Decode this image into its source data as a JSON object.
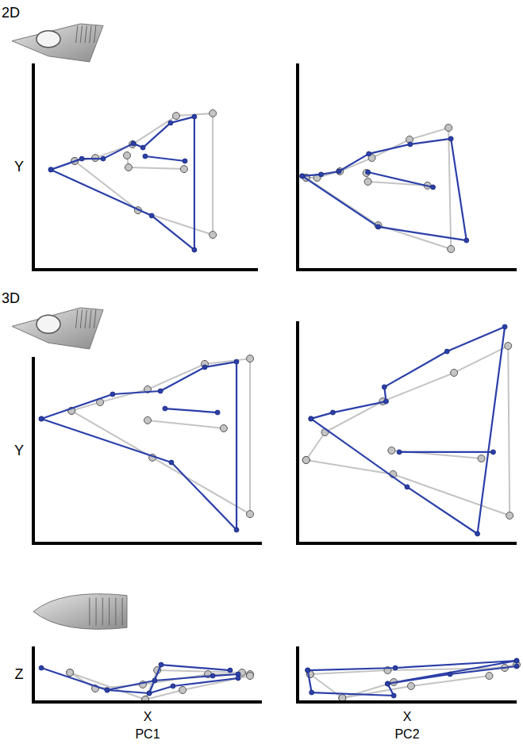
{
  "chart_data": [
    {
      "type": "line",
      "title": "2D",
      "y_label": "Y",
      "xlim": [
        0,
        100
      ],
      "ylim": [
        0,
        100
      ],
      "tick_labels": false,
      "series": [
        {
          "color": "#c4c4c4",
          "marker": "circle",
          "x": [
            18.4,
            27.6,
            44.2,
            63.6,
            79.9,
            79.9,
            46.6,
            18.4,
            null,
            41.7,
            42.4,
            67.1
          ],
          "values": [
            52.7,
            54.2,
            60.8,
            74.6,
            75.8,
            16.9,
            28.8,
            52.7,
            null,
            55.4,
            49.6,
            48.8
          ]
        },
        {
          "color": "#2b3fa8",
          "marker": "dot",
          "x": [
            7.8,
            21.6,
            31.1,
            44.5,
            48.8,
            61.1,
            71.7,
            71.7,
            52.7,
            7.8,
            null,
            49.8,
            67.5
          ],
          "values": [
            48.5,
            53.8,
            53.8,
            61.2,
            59.2,
            71.2,
            74.2,
            9.6,
            26.2,
            48.5,
            null,
            55,
            52.7
          ]
        }
      ]
    },
    {
      "type": "line",
      "xlim": [
        0,
        100
      ],
      "ylim": [
        0,
        100
      ],
      "tick_labels": false,
      "series": [
        {
          "color": "#c4c4c4",
          "marker": "circle",
          "x": [
            3.9,
            8.9,
            19.3,
            33.9,
            51.1,
            68.9,
            70,
            36.8,
            3.9,
            null,
            31.4,
            32.1,
            59.3
          ],
          "values": [
            44.6,
            44.6,
            47.7,
            54.2,
            63.1,
            68.8,
            10,
            21.5,
            44.6,
            null,
            46.9,
            42.7,
            40.8
          ]
        },
        {
          "color": "#2b3fa8",
          "marker": "dot",
          "x": [
            2.1,
            10.7,
            18.9,
            32.5,
            51.4,
            70,
            77.1,
            36.8,
            2.1,
            null,
            32.1,
            61.8
          ],
          "values": [
            45.4,
            46.2,
            47.7,
            56.2,
            60.8,
            63.5,
            14.2,
            20.8,
            45.4,
            null,
            47.3,
            40
          ]
        }
      ]
    },
    {
      "type": "line",
      "title": "3D",
      "y_label": "Y",
      "xlim": [
        0,
        100
      ],
      "ylim": [
        0,
        100
      ],
      "tick_labels": false,
      "series": [
        {
          "color": "#c4c4c4",
          "marker": "circle",
          "x": [
            16.7,
            29.2,
            50,
            75,
            94.8,
            94.8,
            52.1,
            16.7,
            null,
            50,
            83.3
          ],
          "values": [
            71.1,
            75.7,
            82.6,
            96.2,
            99.1,
            15.7,
            46,
            71.1,
            null,
            66,
            61.7
          ]
        },
        {
          "color": "#2b3fa8",
          "marker": "dot",
          "x": [
            3.5,
            34.7,
            55.6,
            75,
            88.9,
            88.9,
            60.4,
            3.5,
            null,
            57.6,
            80.6
          ],
          "values": [
            66.8,
            80,
            81.7,
            94.5,
            97.4,
            7.2,
            43.4,
            66.8,
            null,
            72.3,
            70.2
          ]
        }
      ]
    },
    {
      "type": "line",
      "xlim": [
        0,
        100
      ],
      "ylim": [
        0,
        100
      ],
      "tick_labels": false,
      "series": [
        {
          "color": "#c4c4c4",
          "marker": "circle",
          "x": [
            3.9,
            12.5,
            38.9,
            71.4,
            96.1,
            96.8,
            43.6,
            3.9,
            null,
            42.9,
            83.9
          ],
          "values": [
            37.5,
            50,
            63.9,
            76.8,
            88.9,
            12.5,
            31.1,
            37.5,
            null,
            41.8,
            38.2
          ]
        },
        {
          "color": "#2b3fa8",
          "marker": "dot",
          "x": [
            6.1,
            16.1,
            40.4,
            39.6,
            68.2,
            94.6,
            82.1,
            50,
            6.1,
            null,
            46.4,
            89.3
          ],
          "values": [
            56.1,
            58.9,
            63.9,
            70.4,
            86.4,
            97.5,
            4.3,
            25.4,
            56.1,
            null,
            41.1,
            41.1
          ]
        }
      ]
    },
    {
      "type": "line",
      "y_label": "Z",
      "x_label": "X",
      "annotation": "PC1",
      "xlim": [
        0,
        100
      ],
      "ylim": [
        0,
        100
      ],
      "tick_labels": false,
      "series": [
        {
          "color": "#c4c4c4",
          "marker": "circle",
          "x": [
            16,
            27.1,
            47.9,
            76.4,
            94.8,
            null,
            16,
            49,
            54.2,
            91.3,
            null,
            49,
            65.3,
            94.8
          ],
          "values": [
            52.9,
            24.3,
            31.4,
            50,
            50,
            null,
            52.9,
            4.3,
            57.1,
            52.9,
            null,
            4.3,
            21.4,
            47.1
          ]
        },
        {
          "color": "#2b3fa8",
          "marker": "dot",
          "x": [
            3.5,
            32.3,
            53.1,
            78.5,
            89.6,
            null,
            32.3,
            50.7,
            55.9,
            86.1,
            null,
            50.7,
            61.1,
            89.6
          ],
          "values": [
            61.4,
            21.4,
            38.6,
            47.1,
            50,
            null,
            21.4,
            15.7,
            67.1,
            57.1,
            null,
            15.7,
            28.6,
            42.9
          ]
        }
      ]
    },
    {
      "type": "line",
      "x_label": "X",
      "annotation": "PC2",
      "xlim": [
        0,
        100
      ],
      "ylim": [
        0,
        100
      ],
      "tick_labels": false,
      "series": [
        {
          "color": "#c4c4c4",
          "marker": "circle",
          "x": [
            5.7,
            20.4,
            43.9,
            100,
            null,
            5.7,
            41.1,
            94.6,
            null,
            20.4,
            51.8,
            87.5
          ],
          "values": [
            50,
            7.1,
            35.7,
            67.1,
            null,
            50,
            57.1,
            61.4,
            null,
            7.1,
            28.6,
            47.1
          ]
        },
        {
          "color": "#2b3fa8",
          "marker": "dot",
          "x": [
            4.6,
            6.4,
            43.9,
            41.1,
            100,
            null,
            4.6,
            44.6,
            100,
            null,
            41.1,
            69.6,
            100
          ],
          "values": [
            57.1,
            17.1,
            11.4,
            32.9,
            74.3,
            null,
            57.1,
            61.4,
            74.3,
            null,
            32.9,
            50,
            64.3
          ]
        }
      ]
    }
  ]
}
